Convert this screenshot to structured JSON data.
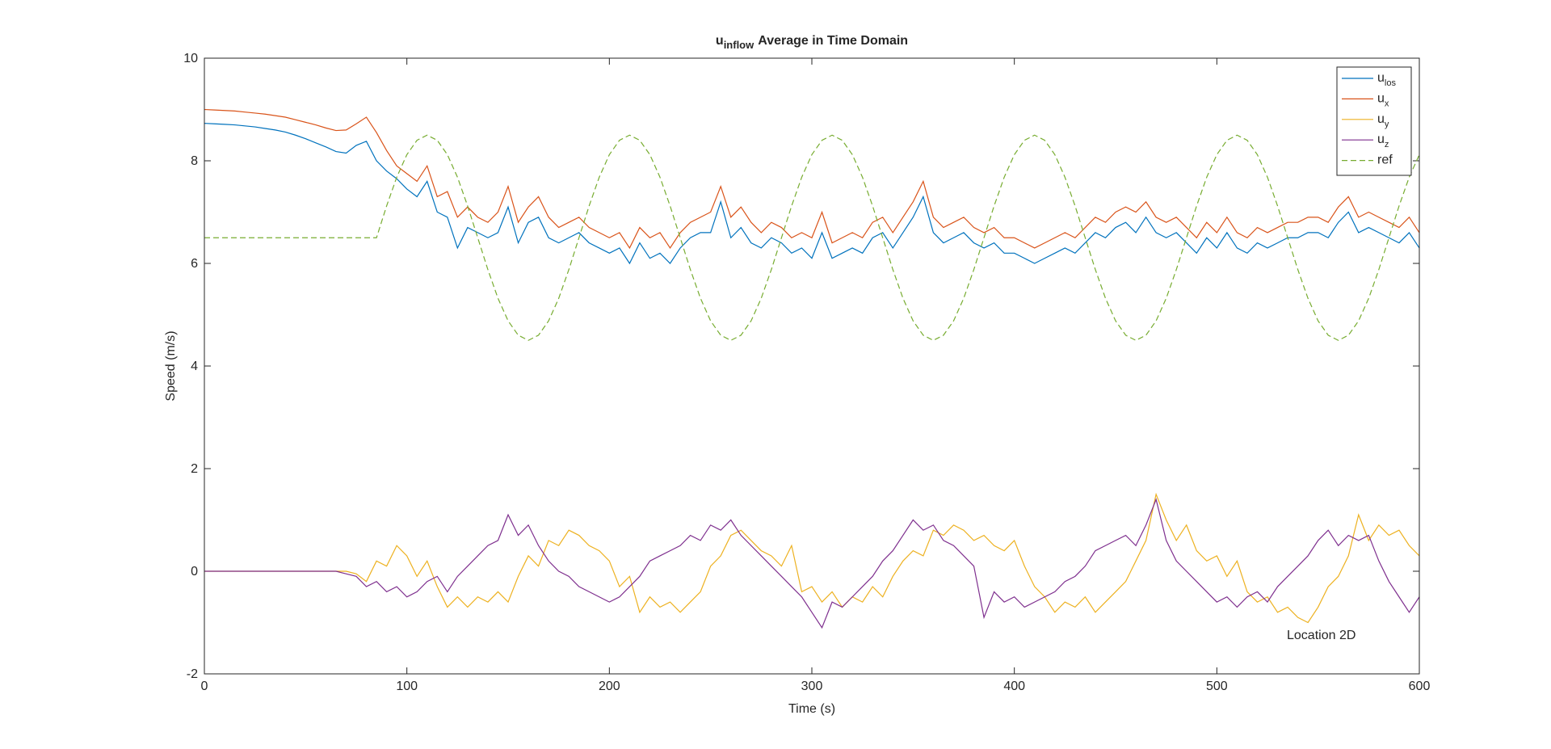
{
  "chart_data": {
    "type": "line",
    "title": "u",
    "title_subscript": "inflow",
    "title_rest": "Average in Time Domain",
    "x_label": "Time (s)",
    "y_label": "Speed (m/s)",
    "annotation": "Location 2D",
    "xlim": [
      0,
      600
    ],
    "xticks": [
      0,
      100,
      200,
      300,
      400,
      500,
      600
    ],
    "ylim": [
      -2,
      10
    ],
    "yticks": [
      -2,
      0,
      2,
      4,
      6,
      8,
      10
    ],
    "legend": "upper-right",
    "x": [
      0,
      5,
      10,
      15,
      20,
      25,
      30,
      35,
      40,
      45,
      50,
      55,
      60,
      65,
      70,
      75,
      80,
      85,
      90,
      95,
      100,
      105,
      110,
      115,
      120,
      125,
      130,
      135,
      140,
      145,
      150,
      155,
      160,
      165,
      170,
      175,
      180,
      185,
      190,
      195,
      200,
      205,
      210,
      215,
      220,
      225,
      230,
      235,
      240,
      245,
      250,
      255,
      260,
      265,
      270,
      275,
      280,
      285,
      290,
      295,
      300,
      305,
      310,
      315,
      320,
      325,
      330,
      335,
      340,
      345,
      350,
      355,
      360,
      365,
      370,
      375,
      380,
      385,
      390,
      395,
      400,
      405,
      410,
      415,
      420,
      425,
      430,
      435,
      440,
      445,
      450,
      455,
      460,
      465,
      470,
      475,
      480,
      485,
      490,
      495,
      500,
      505,
      510,
      515,
      520,
      525,
      530,
      535,
      540,
      545,
      550,
      555,
      560,
      565,
      570,
      575,
      580,
      585,
      590,
      595,
      600
    ],
    "series": [
      {
        "name": "u",
        "subscript": "los",
        "color": "#0072BD",
        "line_style": "solid",
        "values": [
          8.73,
          8.72,
          8.71,
          8.7,
          8.68,
          8.66,
          8.63,
          8.6,
          8.56,
          8.5,
          8.43,
          8.35,
          8.27,
          8.18,
          8.15,
          8.3,
          8.38,
          8.0,
          7.8,
          7.65,
          7.45,
          7.3,
          7.6,
          7.0,
          6.9,
          6.3,
          6.7,
          6.6,
          6.5,
          6.6,
          7.1,
          6.4,
          6.8,
          6.9,
          6.5,
          6.4,
          6.5,
          6.6,
          6.4,
          6.3,
          6.2,
          6.3,
          6.0,
          6.4,
          6.1,
          6.2,
          6.0,
          6.3,
          6.5,
          6.6,
          6.6,
          7.2,
          6.5,
          6.7,
          6.4,
          6.3,
          6.5,
          6.4,
          6.2,
          6.3,
          6.1,
          6.6,
          6.1,
          6.2,
          6.3,
          6.2,
          6.5,
          6.6,
          6.3,
          6.6,
          6.9,
          7.3,
          6.6,
          6.4,
          6.5,
          6.6,
          6.4,
          6.3,
          6.4,
          6.2,
          6.2,
          6.1,
          6.0,
          6.1,
          6.2,
          6.3,
          6.2,
          6.4,
          6.6,
          6.5,
          6.7,
          6.8,
          6.6,
          6.9,
          6.6,
          6.5,
          6.6,
          6.4,
          6.2,
          6.5,
          6.3,
          6.6,
          6.3,
          6.2,
          6.4,
          6.3,
          6.4,
          6.5,
          6.5,
          6.6,
          6.6,
          6.5,
          6.8,
          7.0,
          6.6,
          6.7,
          6.6,
          6.5,
          6.4,
          6.6,
          6.3
        ]
      },
      {
        "name": "u",
        "subscript": "x",
        "color": "#D95319",
        "line_style": "solid",
        "values": [
          9.0,
          8.99,
          8.98,
          8.97,
          8.95,
          8.93,
          8.91,
          8.88,
          8.85,
          8.8,
          8.75,
          8.7,
          8.64,
          8.59,
          8.6,
          8.72,
          8.85,
          8.55,
          8.2,
          7.9,
          7.75,
          7.6,
          7.9,
          7.3,
          7.4,
          6.9,
          7.1,
          6.9,
          6.8,
          7.0,
          7.5,
          6.8,
          7.1,
          7.3,
          6.9,
          6.7,
          6.8,
          6.9,
          6.7,
          6.6,
          6.5,
          6.6,
          6.3,
          6.7,
          6.5,
          6.6,
          6.3,
          6.6,
          6.8,
          6.9,
          7.0,
          7.5,
          6.9,
          7.1,
          6.8,
          6.6,
          6.8,
          6.7,
          6.5,
          6.6,
          6.5,
          7.0,
          6.4,
          6.5,
          6.6,
          6.5,
          6.8,
          6.9,
          6.6,
          6.9,
          7.2,
          7.6,
          6.9,
          6.7,
          6.8,
          6.9,
          6.7,
          6.6,
          6.7,
          6.5,
          6.5,
          6.4,
          6.3,
          6.4,
          6.5,
          6.6,
          6.5,
          6.7,
          6.9,
          6.8,
          7.0,
          7.1,
          7.0,
          7.2,
          6.9,
          6.8,
          6.9,
          6.7,
          6.5,
          6.8,
          6.6,
          6.9,
          6.6,
          6.5,
          6.7,
          6.6,
          6.7,
          6.8,
          6.8,
          6.9,
          6.9,
          6.8,
          7.1,
          7.3,
          6.9,
          7.0,
          6.9,
          6.8,
          6.7,
          6.9,
          6.6
        ]
      },
      {
        "name": "u",
        "subscript": "y",
        "color": "#EDB120",
        "line_style": "solid",
        "values": [
          0,
          0,
          0,
          0,
          0,
          0,
          0,
          0,
          0,
          0,
          0,
          0,
          0,
          0,
          0,
          -0.05,
          -0.2,
          0.2,
          0.1,
          0.5,
          0.3,
          -0.1,
          0.2,
          -0.3,
          -0.7,
          -0.5,
          -0.7,
          -0.5,
          -0.6,
          -0.4,
          -0.6,
          -0.1,
          0.3,
          0.1,
          0.6,
          0.5,
          0.8,
          0.7,
          0.5,
          0.4,
          0.2,
          -0.3,
          -0.1,
          -0.8,
          -0.5,
          -0.7,
          -0.6,
          -0.8,
          -0.6,
          -0.4,
          0.1,
          0.3,
          0.7,
          0.8,
          0.6,
          0.4,
          0.3,
          0.1,
          0.5,
          -0.4,
          -0.3,
          -0.6,
          -0.4,
          -0.7,
          -0.5,
          -0.6,
          -0.3,
          -0.5,
          -0.1,
          0.2,
          0.4,
          0.3,
          0.8,
          0.7,
          0.9,
          0.8,
          0.6,
          0.7,
          0.5,
          0.4,
          0.6,
          0.1,
          -0.3,
          -0.5,
          -0.8,
          -0.6,
          -0.7,
          -0.5,
          -0.8,
          -0.6,
          -0.4,
          -0.2,
          0.2,
          0.6,
          1.5,
          1.0,
          0.6,
          0.9,
          0.4,
          0.2,
          0.3,
          -0.1,
          0.2,
          -0.4,
          -0.6,
          -0.5,
          -0.8,
          -0.7,
          -0.9,
          -1.0,
          -0.7,
          -0.3,
          -0.1,
          0.3,
          1.1,
          0.6,
          0.9,
          0.7,
          0.8,
          0.5,
          0.3
        ]
      },
      {
        "name": "u",
        "subscript": "z",
        "color": "#7E2F8E",
        "line_style": "solid",
        "values": [
          0,
          0,
          0,
          0,
          0,
          0,
          0,
          0,
          0,
          0,
          0,
          0,
          0,
          0,
          -0.05,
          -0.1,
          -0.3,
          -0.2,
          -0.4,
          -0.3,
          -0.5,
          -0.4,
          -0.2,
          -0.1,
          -0.4,
          -0.1,
          0.1,
          0.3,
          0.5,
          0.6,
          1.1,
          0.7,
          0.9,
          0.5,
          0.2,
          0.0,
          -0.1,
          -0.3,
          -0.4,
          -0.5,
          -0.6,
          -0.5,
          -0.3,
          -0.1,
          0.2,
          0.3,
          0.4,
          0.5,
          0.7,
          0.6,
          0.9,
          0.8,
          1.0,
          0.7,
          0.5,
          0.3,
          0.1,
          -0.1,
          -0.3,
          -0.5,
          -0.8,
          -1.1,
          -0.6,
          -0.7,
          -0.5,
          -0.3,
          -0.1,
          0.2,
          0.4,
          0.7,
          1.0,
          0.8,
          0.9,
          0.6,
          0.5,
          0.3,
          0.1,
          -0.9,
          -0.4,
          -0.6,
          -0.5,
          -0.7,
          -0.6,
          -0.5,
          -0.4,
          -0.2,
          -0.1,
          0.1,
          0.4,
          0.5,
          0.6,
          0.7,
          0.5,
          0.9,
          1.4,
          0.6,
          0.2,
          0.0,
          -0.2,
          -0.4,
          -0.6,
          -0.5,
          -0.7,
          -0.5,
          -0.4,
          -0.6,
          -0.3,
          -0.1,
          0.1,
          0.3,
          0.6,
          0.8,
          0.5,
          0.7,
          0.6,
          0.7,
          0.2,
          -0.2,
          -0.5,
          -0.8,
          -0.5
        ]
      },
      {
        "name": "ref",
        "color": "#77AC30",
        "line_style": "dashed",
        "values": [
          6.5,
          6.5,
          6.5,
          6.5,
          6.5,
          6.5,
          6.5,
          6.5,
          6.5,
          6.5,
          6.5,
          6.5,
          6.5,
          6.5,
          6.5,
          6.5,
          6.5,
          6.5,
          7.12,
          7.68,
          8.12,
          8.4,
          8.5,
          8.4,
          8.12,
          7.68,
          7.12,
          6.5,
          5.88,
          5.32,
          4.88,
          4.6,
          4.5,
          4.6,
          4.88,
          5.32,
          5.88,
          6.5,
          7.12,
          7.68,
          8.12,
          8.4,
          8.5,
          8.4,
          8.12,
          7.68,
          7.12,
          6.5,
          5.88,
          5.32,
          4.88,
          4.6,
          4.5,
          4.6,
          4.88,
          5.32,
          5.88,
          6.5,
          7.12,
          7.68,
          8.12,
          8.4,
          8.5,
          8.4,
          8.12,
          7.68,
          7.12,
          6.5,
          5.88,
          5.32,
          4.88,
          4.6,
          4.5,
          4.6,
          4.88,
          5.32,
          5.88,
          6.5,
          7.12,
          7.68,
          8.12,
          8.4,
          8.5,
          8.4,
          8.12,
          7.68,
          7.12,
          6.5,
          5.88,
          5.32,
          4.88,
          4.6,
          4.5,
          4.6,
          4.88,
          5.32,
          5.88,
          6.5,
          7.12,
          7.68,
          8.12,
          8.4,
          8.5,
          8.4,
          8.12,
          7.68,
          7.12,
          6.5,
          5.88,
          5.32,
          4.88,
          4.6,
          4.5,
          4.6,
          4.88,
          5.32,
          5.88,
          6.5,
          7.12,
          7.68,
          8.12
        ]
      }
    ]
  }
}
